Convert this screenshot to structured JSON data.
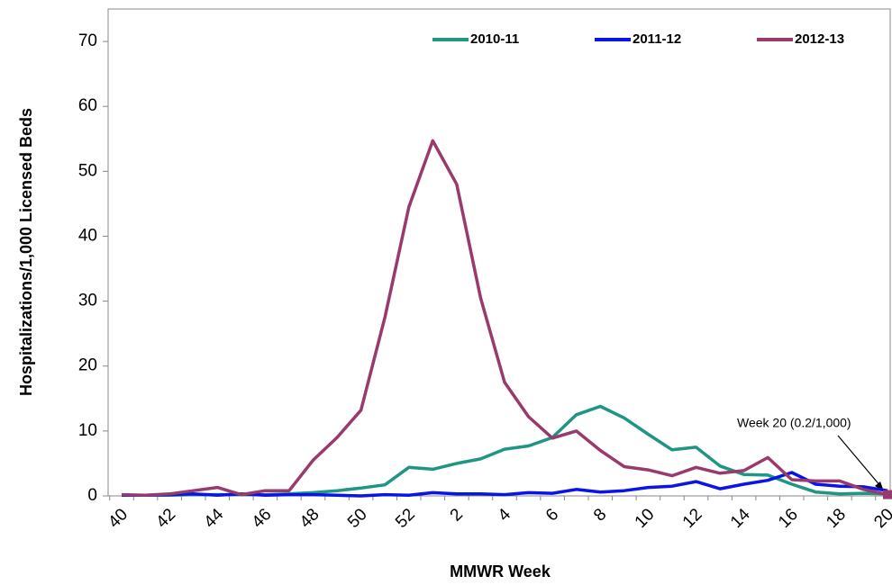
{
  "chart_data": {
    "type": "line",
    "y_label": "Hospitalizations/1,000 Licensed Beds",
    "x_label": "MMWR Week",
    "annotation": "Week 20 (0.2/1,000)",
    "categories": [
      "40",
      null,
      "42",
      null,
      "44",
      null,
      "46",
      null,
      "48",
      null,
      "50",
      null,
      "52",
      null,
      "2",
      null,
      "4",
      null,
      "6",
      null,
      "8",
      null,
      "10",
      null,
      "12",
      null,
      "14",
      null,
      "16",
      null,
      "18",
      null,
      "20"
    ],
    "series": [
      {
        "name": "2010-11",
        "color": "#1f9584",
        "values": [
          0.1,
          0.1,
          0.1,
          0.2,
          0.2,
          0.2,
          0.2,
          0.3,
          0.5,
          0.8,
          1.2,
          1.7,
          4.4,
          4.1,
          5.0,
          5.7,
          7.2,
          7.7,
          9.0,
          12.5,
          13.8,
          12.0,
          9.5,
          7.1,
          7.5,
          4.6,
          3.3,
          3.2,
          1.8,
          0.6,
          0.3,
          0.4,
          0.3
        ]
      },
      {
        "name": "2011-12",
        "color": "#0a14e6",
        "values": [
          0.1,
          0.1,
          0.2,
          0.3,
          0.1,
          0.3,
          0.1,
          0.2,
          0.2,
          0.1,
          0.0,
          0.2,
          0.1,
          0.5,
          0.3,
          0.3,
          0.2,
          0.5,
          0.4,
          1.0,
          0.6,
          0.8,
          1.3,
          1.5,
          2.2,
          1.1,
          1.8,
          2.4,
          3.6,
          1.8,
          1.5,
          1.4,
          0.8
        ]
      },
      {
        "name": "2012-13",
        "color": "#993a6c",
        "values": [
          0.2,
          0.1,
          0.3,
          0.8,
          1.3,
          0.2,
          0.8,
          0.8,
          5.5,
          9.0,
          13.2,
          27.5,
          44.5,
          54.7,
          48.0,
          30.5,
          17.5,
          12.2,
          8.9,
          10.0,
          7.0,
          4.5,
          4.0,
          3.1,
          4.4,
          3.5,
          3.9,
          5.9,
          2.5,
          2.3,
          2.3,
          1.0,
          0.2
        ]
      }
    ],
    "ylim": [
      0,
      75
    ],
    "yticks": [
      0,
      10,
      20,
      30,
      40,
      50,
      60,
      70
    ]
  }
}
